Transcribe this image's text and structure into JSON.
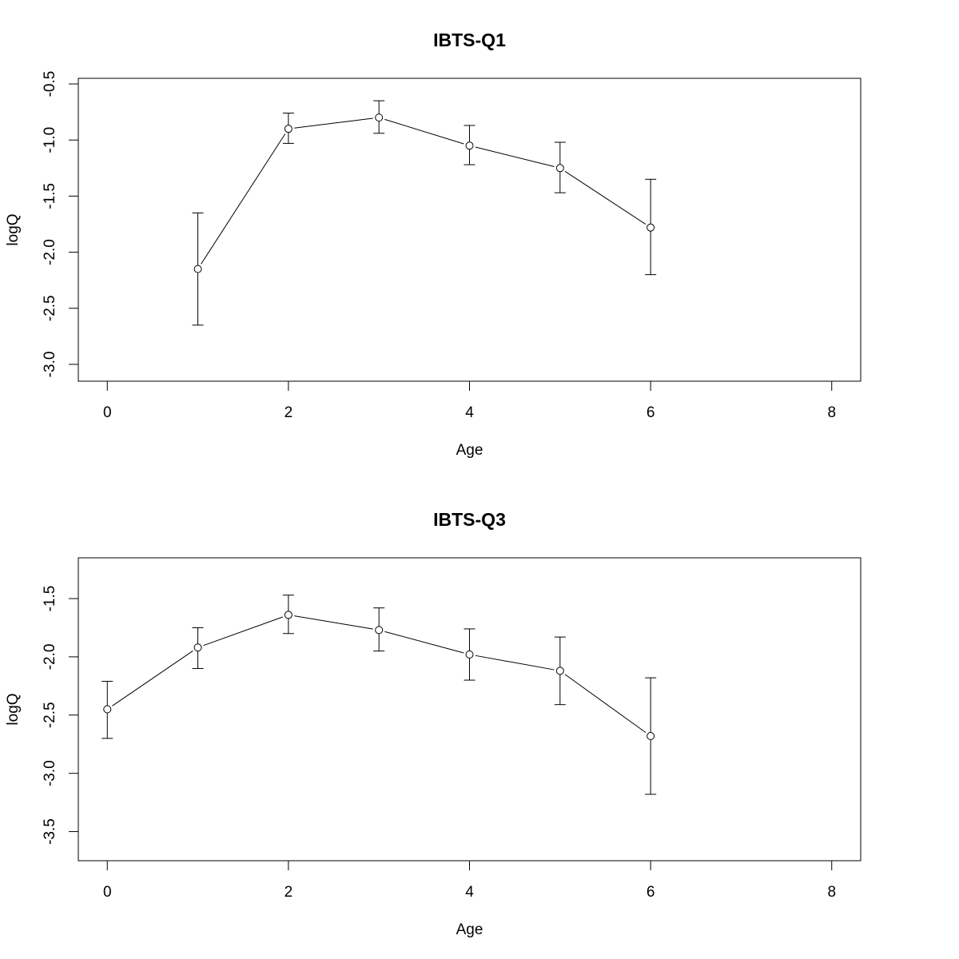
{
  "chart_data": [
    {
      "type": "scatter",
      "title": "IBTS-Q1",
      "xlabel": "Age",
      "ylabel": "logQ",
      "xlim": [
        -0.32,
        8.32
      ],
      "ylim": [
        -3.15,
        -0.45
      ],
      "xticks": [
        0,
        2,
        4,
        6,
        8
      ],
      "xtick_labels": [
        "0",
        "2",
        "4",
        "6",
        "8"
      ],
      "yticks": [
        -0.5,
        -1.0,
        -1.5,
        -2.0,
        -2.5,
        -3.0
      ],
      "ytick_labels": [
        "-0.5",
        "-1.0",
        "-1.5",
        "-2.0",
        "-2.5",
        "-3.0"
      ],
      "grid": false,
      "series": [
        {
          "x": [
            1,
            2,
            3,
            4,
            5,
            6
          ],
          "y": [
            -2.15,
            -0.9,
            -0.8,
            -1.05,
            -1.25,
            -1.78
          ],
          "lower": [
            -2.65,
            -1.03,
            -0.94,
            -1.22,
            -1.47,
            -2.2
          ],
          "upper": [
            -1.65,
            -0.76,
            -0.65,
            -0.87,
            -1.02,
            -1.35
          ]
        }
      ]
    },
    {
      "type": "scatter",
      "title": "IBTS-Q3",
      "xlabel": "Age",
      "ylabel": "logQ",
      "xlim": [
        -0.32,
        8.32
      ],
      "ylim": [
        -3.75,
        -1.15
      ],
      "xticks": [
        0,
        2,
        4,
        6,
        8
      ],
      "xtick_labels": [
        "0",
        "2",
        "4",
        "6",
        "8"
      ],
      "yticks": [
        -1.5,
        -2.0,
        -2.5,
        -3.0,
        -3.5
      ],
      "ytick_labels": [
        "-1.5",
        "-2.0",
        "-2.5",
        "-3.0",
        "-3.5"
      ],
      "grid": false,
      "series": [
        {
          "x": [
            0,
            1,
            2,
            3,
            4,
            5,
            6
          ],
          "y": [
            -2.45,
            -1.92,
            -1.64,
            -1.77,
            -1.98,
            -2.12,
            -2.68
          ],
          "lower": [
            -2.7,
            -2.1,
            -1.8,
            -1.95,
            -2.2,
            -2.41,
            -3.18
          ],
          "upper": [
            -2.21,
            -1.75,
            -1.47,
            -1.58,
            -1.76,
            -1.83,
            -2.18
          ]
        }
      ]
    }
  ]
}
